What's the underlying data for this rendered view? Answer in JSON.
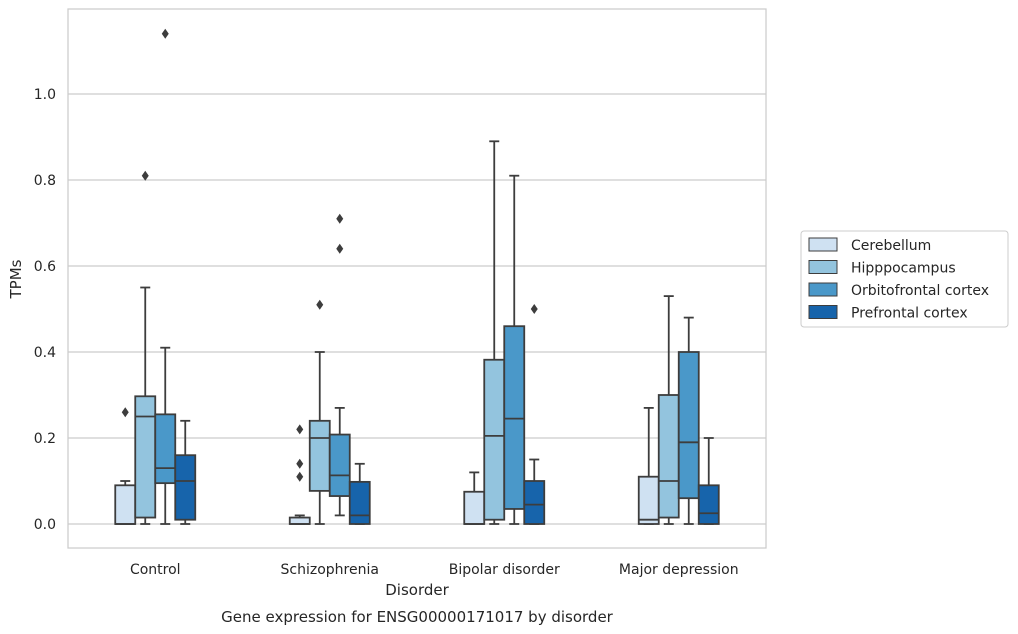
{
  "chart_data": {
    "type": "box",
    "title": "",
    "caption": "Gene expression for ENSG00000171017 by disorder",
    "xlabel": "Disorder",
    "ylabel": "TPMs",
    "ylim": [
      -0.055,
      1.2
    ],
    "yticks": [
      0.0,
      0.2,
      0.4,
      0.6,
      0.8,
      1.0
    ],
    "ytick_labels": [
      "0.0",
      "0.2",
      "0.4",
      "0.6",
      "0.8",
      "1.0"
    ],
    "grid": "horizontal",
    "legend_position": "outside-right",
    "categories": [
      "Control",
      "Schizophrenia",
      "Bipolar disorder",
      "Major depression"
    ],
    "series": [
      {
        "name": "Cerebellum",
        "color": "#cfe1f2",
        "boxes": [
          {
            "whislo": 0.0,
            "q1": 0.0,
            "med": 0.0,
            "q3": 0.09,
            "whishi": 0.1,
            "fliers": [
              0.26
            ]
          },
          {
            "whislo": 0.0,
            "q1": 0.0,
            "med": 0.0,
            "q3": 0.015,
            "whishi": 0.02,
            "fliers": [
              0.11,
              0.14,
              0.22
            ]
          },
          {
            "whislo": 0.0,
            "q1": 0.0,
            "med": 0.0,
            "q3": 0.075,
            "whishi": 0.12,
            "fliers": []
          },
          {
            "whislo": 0.0,
            "q1": 0.0,
            "med": 0.01,
            "q3": 0.11,
            "whishi": 0.27,
            "fliers": []
          }
        ]
      },
      {
        "name": "Hipppocampus",
        "color": "#93c4de",
        "boxes": [
          {
            "whislo": 0.0,
            "q1": 0.015,
            "med": 0.25,
            "q3": 0.297,
            "whishi": 0.55,
            "fliers": [
              0.81
            ]
          },
          {
            "whislo": 0.0,
            "q1": 0.077,
            "med": 0.2,
            "q3": 0.24,
            "whishi": 0.4,
            "fliers": [
              0.51
            ]
          },
          {
            "whislo": 0.0,
            "q1": 0.01,
            "med": 0.205,
            "q3": 0.382,
            "whishi": 0.89,
            "fliers": []
          },
          {
            "whislo": 0.0,
            "q1": 0.015,
            "med": 0.1,
            "q3": 0.3,
            "whishi": 0.53,
            "fliers": []
          }
        ]
      },
      {
        "name": "Orbitofrontal cortex",
        "color": "#4a98c9",
        "boxes": [
          {
            "whislo": 0.0,
            "q1": 0.095,
            "med": 0.13,
            "q3": 0.255,
            "whishi": 0.41,
            "fliers": [
              1.14
            ]
          },
          {
            "whislo": 0.02,
            "q1": 0.065,
            "med": 0.113,
            "q3": 0.208,
            "whishi": 0.27,
            "fliers": [
              0.64,
              0.71
            ]
          },
          {
            "whislo": 0.0,
            "q1": 0.035,
            "med": 0.245,
            "q3": 0.46,
            "whishi": 0.81,
            "fliers": []
          },
          {
            "whislo": 0.0,
            "q1": 0.06,
            "med": 0.19,
            "q3": 0.4,
            "whishi": 0.48,
            "fliers": []
          }
        ]
      },
      {
        "name": "Prefrontal cortex",
        "color": "#1764ab",
        "boxes": [
          {
            "whislo": 0.0,
            "q1": 0.01,
            "med": 0.1,
            "q3": 0.16,
            "whishi": 0.24,
            "fliers": []
          },
          {
            "whislo": 0.0,
            "q1": 0.0,
            "med": 0.02,
            "q3": 0.098,
            "whishi": 0.14,
            "fliers": []
          },
          {
            "whislo": 0.0,
            "q1": 0.0,
            "med": 0.045,
            "q3": 0.1,
            "whishi": 0.15,
            "fliers": [
              0.5
            ]
          },
          {
            "whislo": 0.0,
            "q1": 0.0,
            "med": 0.025,
            "q3": 0.09,
            "whishi": 0.2,
            "fliers": []
          }
        ]
      }
    ]
  }
}
